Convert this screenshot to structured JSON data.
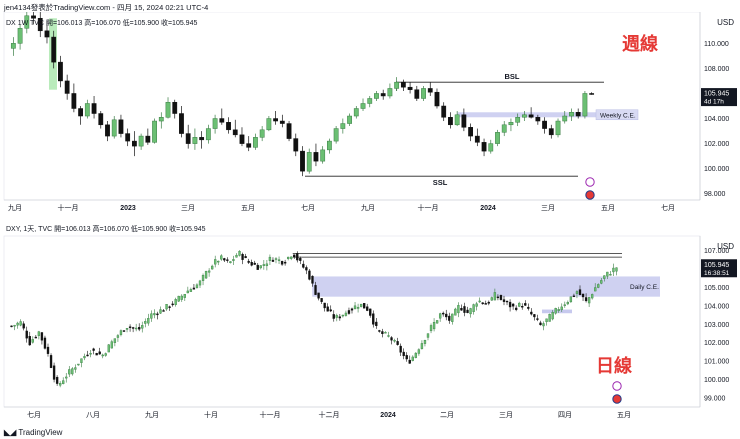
{
  "header": {
    "caption": "jen4134發表於TradingView.com - 四月 15, 2024 02:21 UTC-4"
  },
  "footer": {
    "brand": "TradingView"
  },
  "chart_data": [
    {
      "type": "candlestick",
      "info_prefix": "DX",
      "info_text": "1W  TVC  開=106.013  高=106.070  低=105.900  收=105.945",
      "currency": "USD",
      "overlay_title": "週線",
      "ylim": [
        97.5,
        112.5
      ],
      "y_ticks": [
        98.0,
        100.0,
        102.0,
        104.0,
        106.0,
        108.0,
        110.0
      ],
      "x_ticks": [
        "九月",
        "十一月",
        "2023",
        "三月",
        "五月",
        "七月",
        "九月",
        "十一月",
        "2024",
        "三月",
        "五月",
        "七月"
      ],
      "price_label": "105.945",
      "countdown": "4d 17h",
      "zone_label": "Weekly C.E.",
      "zone_range": [
        104.1,
        104.5
      ],
      "bsl": {
        "label": "BSL",
        "level": 106.9
      },
      "ssl": {
        "label": "SSL",
        "level": 99.4
      },
      "candles": [
        [
          109.6,
          110.5,
          109.0,
          110.0
        ],
        [
          110.0,
          111.5,
          109.5,
          111.2
        ],
        [
          111.2,
          112.8,
          110.8,
          112.2
        ],
        [
          112.2,
          113.0,
          111.5,
          112.0
        ],
        [
          112.0,
          112.5,
          110.5,
          111.0
        ],
        [
          111.0,
          111.8,
          110.0,
          110.5
        ],
        [
          110.5,
          111.0,
          108.0,
          108.5
        ],
        [
          108.5,
          109.0,
          106.5,
          107.0
        ],
        [
          107.0,
          107.5,
          105.5,
          106.0
        ],
        [
          106.0,
          106.8,
          104.5,
          104.8
        ],
        [
          104.8,
          105.0,
          103.5,
          104.2
        ],
        [
          104.2,
          105.5,
          104.0,
          105.2
        ],
        [
          105.2,
          105.8,
          104.0,
          104.4
        ],
        [
          104.4,
          104.6,
          103.2,
          103.5
        ],
        [
          103.5,
          103.8,
          102.2,
          102.6
        ],
        [
          102.6,
          104.2,
          102.4,
          103.9
        ],
        [
          103.9,
          104.3,
          102.5,
          102.8
        ],
        [
          102.8,
          103.2,
          101.8,
          102.2
        ],
        [
          102.2,
          103.0,
          101.0,
          101.8
        ],
        [
          101.8,
          102.8,
          101.5,
          102.6
        ],
        [
          102.6,
          103.2,
          101.9,
          102.1
        ],
        [
          102.1,
          104.0,
          102.0,
          103.8
        ],
        [
          103.8,
          104.5,
          103.2,
          104.1
        ],
        [
          104.1,
          105.7,
          104.0,
          105.3
        ],
        [
          105.3,
          105.5,
          104.0,
          104.4
        ],
        [
          104.4,
          105.0,
          102.5,
          102.8
        ],
        [
          102.8,
          103.5,
          101.6,
          102.0
        ],
        [
          102.0,
          103.2,
          101.5,
          102.5
        ],
        [
          102.5,
          103.0,
          101.6,
          102.3
        ],
        [
          102.3,
          103.5,
          102.0,
          103.2
        ],
        [
          103.2,
          104.3,
          102.8,
          104.0
        ],
        [
          104.0,
          104.8,
          103.5,
          103.7
        ],
        [
          103.7,
          104.1,
          102.8,
          103.1
        ],
        [
          103.1,
          103.9,
          102.5,
          102.7
        ],
        [
          102.7,
          103.3,
          101.8,
          102.0
        ],
        [
          102.0,
          102.6,
          101.4,
          101.7
        ],
        [
          101.7,
          102.8,
          101.5,
          102.5
        ],
        [
          102.5,
          103.4,
          102.2,
          103.1
        ],
        [
          103.1,
          104.2,
          103.0,
          104.0
        ],
        [
          104.0,
          104.6,
          103.5,
          103.8
        ],
        [
          103.8,
          104.3,
          103.3,
          103.6
        ],
        [
          103.6,
          103.8,
          102.2,
          102.4
        ],
        [
          102.4,
          102.8,
          101.0,
          101.4
        ],
        [
          101.4,
          101.8,
          99.4,
          99.8
        ],
        [
          99.8,
          101.6,
          99.6,
          101.3
        ],
        [
          101.3,
          102.0,
          100.2,
          100.6
        ],
        [
          100.6,
          101.8,
          100.4,
          101.5
        ],
        [
          101.5,
          102.4,
          101.2,
          102.2
        ],
        [
          102.2,
          103.4,
          102.0,
          103.2
        ],
        [
          103.2,
          104.0,
          102.8,
          103.6
        ],
        [
          103.6,
          104.4,
          103.4,
          104.2
        ],
        [
          104.2,
          105.0,
          104.0,
          104.8
        ],
        [
          104.8,
          105.6,
          104.6,
          105.2
        ],
        [
          105.2,
          105.8,
          104.9,
          105.6
        ],
        [
          105.6,
          106.2,
          105.4,
          106.0
        ],
        [
          106.0,
          106.3,
          105.5,
          105.8
        ],
        [
          105.8,
          106.8,
          105.6,
          106.4
        ],
        [
          106.4,
          107.3,
          106.2,
          106.9
        ],
        [
          106.9,
          107.1,
          106.2,
          106.5
        ],
        [
          106.5,
          106.9,
          106.0,
          106.3
        ],
        [
          106.3,
          106.6,
          105.4,
          105.6
        ],
        [
          105.6,
          106.6,
          105.4,
          106.4
        ],
        [
          106.4,
          106.9,
          105.8,
          106.1
        ],
        [
          106.1,
          106.4,
          104.8,
          105.0
        ],
        [
          105.0,
          105.3,
          103.8,
          104.1
        ],
        [
          104.1,
          104.5,
          103.2,
          103.5
        ],
        [
          103.5,
          104.6,
          103.4,
          104.3
        ],
        [
          104.3,
          104.8,
          103.0,
          103.3
        ],
        [
          103.3,
          103.6,
          102.2,
          102.6
        ],
        [
          102.6,
          103.2,
          101.8,
          102.1
        ],
        [
          102.1,
          102.4,
          101.0,
          101.4
        ],
        [
          101.4,
          102.3,
          101.2,
          102.0
        ],
        [
          102.0,
          103.1,
          101.8,
          102.9
        ],
        [
          102.9,
          103.8,
          102.6,
          103.5
        ],
        [
          103.5,
          104.0,
          103.0,
          103.7
        ],
        [
          103.7,
          104.4,
          103.4,
          104.1
        ],
        [
          104.1,
          104.6,
          103.8,
          104.3
        ],
        [
          104.3,
          104.9,
          104.0,
          104.1
        ],
        [
          104.1,
          104.3,
          103.5,
          103.8
        ],
        [
          103.8,
          104.1,
          102.8,
          103.2
        ],
        [
          103.2,
          103.5,
          102.4,
          102.7
        ],
        [
          102.7,
          104.0,
          102.5,
          103.8
        ],
        [
          103.8,
          104.6,
          103.6,
          104.2
        ],
        [
          104.2,
          104.8,
          103.8,
          104.5
        ],
        [
          104.5,
          104.8,
          104.0,
          104.2
        ],
        [
          104.2,
          106.2,
          104.0,
          106.0
        ],
        [
          106.0,
          106.1,
          105.9,
          105.95
        ]
      ]
    },
    {
      "type": "candlestick",
      "info_text": "DXY, 1天, TVC  開=106.013  高=106.070  低=105.900  收=105.945",
      "currency": "USD",
      "overlay_title": "日線",
      "ylim": [
        98.5,
        107.8
      ],
      "y_ticks": [
        99.0,
        100.0,
        101.0,
        102.0,
        103.0,
        104.0,
        105.0,
        106.0,
        107.0
      ],
      "x_ticks": [
        "七月",
        "八月",
        "九月",
        "十月",
        "十一月",
        "十二月",
        "2024",
        "二月",
        "三月",
        "四月",
        "五月"
      ],
      "price_label": "105.945",
      "countdown": "16:38:51",
      "zone_label": "Daily C.E.",
      "zone_range": [
        104.5,
        105.6
      ],
      "bsl_lines": [
        106.65,
        106.85
      ],
      "small_zone_range": [
        103.6,
        103.8
      ],
      "pivots": [
        [
          0.0,
          102.9
        ],
        [
          0.015,
          103.1
        ],
        [
          0.03,
          102.0
        ],
        [
          0.045,
          102.6
        ],
        [
          0.06,
          101.4
        ],
        [
          0.075,
          99.6
        ],
        [
          0.09,
          100.2
        ],
        [
          0.11,
          100.9
        ],
        [
          0.13,
          101.6
        ],
        [
          0.15,
          101.3
        ],
        [
          0.17,
          102.2
        ],
        [
          0.19,
          102.9
        ],
        [
          0.21,
          102.7
        ],
        [
          0.23,
          103.5
        ],
        [
          0.25,
          103.8
        ],
        [
          0.27,
          104.2
        ],
        [
          0.29,
          104.8
        ],
        [
          0.31,
          105.2
        ],
        [
          0.33,
          106.2
        ],
        [
          0.345,
          106.6
        ],
        [
          0.36,
          106.3
        ],
        [
          0.375,
          106.9
        ],
        [
          0.39,
          106.4
        ],
        [
          0.41,
          106.1
        ],
        [
          0.43,
          106.6
        ],
        [
          0.45,
          106.4
        ],
        [
          0.465,
          106.9
        ],
        [
          0.48,
          106.2
        ],
        [
          0.49,
          105.8
        ],
        [
          0.5,
          104.9
        ],
        [
          0.515,
          104.0
        ],
        [
          0.535,
          103.3
        ],
        [
          0.555,
          103.7
        ],
        [
          0.575,
          104.1
        ],
        [
          0.59,
          103.8
        ],
        [
          0.605,
          102.6
        ],
        [
          0.625,
          102.3
        ],
        [
          0.64,
          101.7
        ],
        [
          0.655,
          100.9
        ],
        [
          0.665,
          101.3
        ],
        [
          0.68,
          102.1
        ],
        [
          0.695,
          102.9
        ],
        [
          0.71,
          103.6
        ],
        [
          0.725,
          103.2
        ],
        [
          0.74,
          104.0
        ],
        [
          0.755,
          103.6
        ],
        [
          0.77,
          104.3
        ],
        [
          0.785,
          104.1
        ],
        [
          0.8,
          104.6
        ],
        [
          0.815,
          104.2
        ],
        [
          0.83,
          103.9
        ],
        [
          0.845,
          104.1
        ],
        [
          0.86,
          103.5
        ],
        [
          0.875,
          102.9
        ],
        [
          0.89,
          103.4
        ],
        [
          0.905,
          103.9
        ],
        [
          0.92,
          104.3
        ],
        [
          0.935,
          104.8
        ],
        [
          0.95,
          104.2
        ],
        [
          0.965,
          105.0
        ],
        [
          0.98,
          105.6
        ],
        [
          1.0,
          106.1
        ]
      ]
    }
  ],
  "colors": {
    "up": "#3a7d44",
    "down": "#111111",
    "zone": "#c7c9ee",
    "accent": "#e53935",
    "highlight": "#9be39e"
  }
}
